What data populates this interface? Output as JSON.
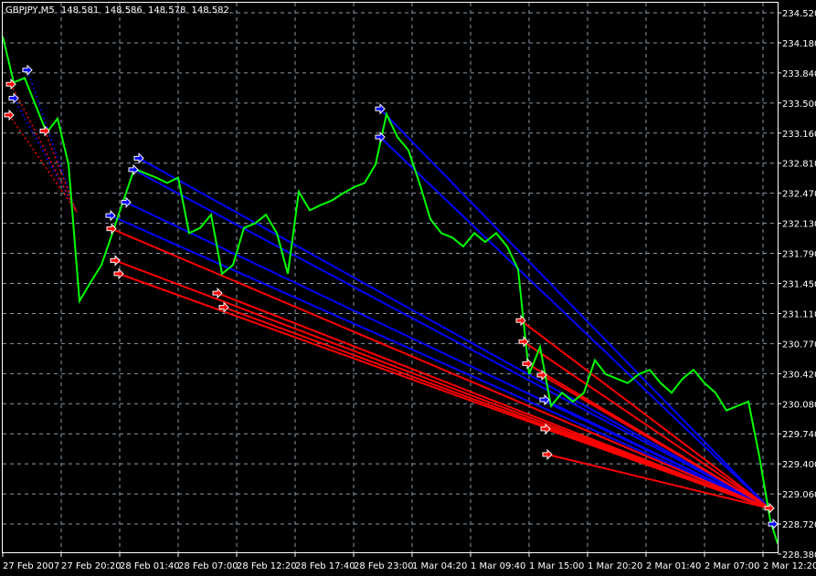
{
  "header": {
    "symbol": "GBPJPY,M5",
    "open": "148.581",
    "high": "148.586",
    "low": "148.578",
    "close": "148.582"
  },
  "colors": {
    "background": "#000000",
    "grid": "#8a9aa8",
    "price": "#00ff00",
    "buy": "#0000ff",
    "sell": "#ff0000",
    "axis": "#ffffff"
  },
  "chart_data": {
    "type": "line",
    "title": "",
    "xlabel": "",
    "ylabel": "",
    "grid": true,
    "ylim": [
      228.38,
      234.52
    ],
    "yticks": [
      "234.520",
      "234.180",
      "233.840",
      "233.500",
      "233.160",
      "232.810",
      "232.470",
      "232.130",
      "231.790",
      "231.450",
      "231.110",
      "230.770",
      "230.420",
      "230.080",
      "229.740",
      "229.400",
      "229.060",
      "228.720",
      "228.380"
    ],
    "xticks": [
      "27 Feb 2007",
      "27 Feb 20:20",
      "28 Feb 01:40",
      "28 Feb 07:00",
      "28 Feb 12:20",
      "28 Feb 17:40",
      "28 Feb 23:00",
      "1 Mar 04:20",
      "1 Mar 09:40",
      "1 Mar 15:00",
      "1 Mar 20:20",
      "2 Mar 01:40",
      "2 Mar 07:00",
      "2 Mar 12:20"
    ],
    "xrange": [
      "2007-02-27 14:50",
      "2007-03-02 13:45"
    ],
    "series": [
      {
        "start": "2007-02-27 15:00",
        "interval_minutes": 60,
        "values": [
          234.25,
          233.73,
          233.78,
          233.47,
          233.16,
          233.32,
          232.8,
          231.25,
          231.46,
          231.66,
          232.02,
          232.39,
          232.75,
          232.7,
          232.65,
          232.59,
          232.65,
          232.02,
          232.08,
          232.23,
          231.56,
          231.66,
          232.08,
          232.13,
          232.23,
          232.02,
          231.56,
          232.49,
          232.28,
          232.34,
          232.39,
          232.47,
          232.54,
          232.59,
          232.8,
          233.37,
          233.11,
          232.96,
          232.59,
          232.18,
          232.02,
          231.97,
          231.87,
          232.02,
          231.92,
          232.02,
          231.87,
          231.61,
          230.42,
          230.73,
          230.06,
          230.21,
          230.11,
          230.21,
          230.58,
          230.42,
          230.37,
          230.32,
          230.42,
          230.47,
          230.32,
          230.21,
          230.37,
          230.47,
          230.32,
          230.21,
          230.01,
          230.06,
          230.11,
          229.49,
          228.76,
          228.5
        ]
      }
    ],
    "trades": [
      {
        "side": "buy",
        "open_time": "2007-03-01 01:25",
        "open_price": 233.43,
        "close_time": "2007-03-02 12:55",
        "close_price": 228.9,
        "style": "solid"
      },
      {
        "side": "buy",
        "open_time": "2007-03-01 01:25",
        "open_price": 233.11,
        "close_time": "2007-03-02 12:55",
        "close_price": 228.9,
        "style": "solid"
      },
      {
        "side": "buy",
        "open_time": "2007-02-28 03:25",
        "open_price": 232.87,
        "close_time": "2007-03-02 12:55",
        "close_price": 228.9,
        "style": "solid"
      },
      {
        "side": "buy",
        "open_time": "2007-02-28 02:55",
        "open_price": 232.74,
        "close_time": "2007-03-02 12:55",
        "close_price": 228.9,
        "style": "solid"
      },
      {
        "side": "buy",
        "open_time": "2007-02-28 02:15",
        "open_price": 232.37,
        "close_time": "2007-03-02 12:55",
        "close_price": 228.9,
        "style": "solid"
      },
      {
        "side": "buy",
        "open_time": "2007-02-28 00:50",
        "open_price": 232.22,
        "close_time": "2007-03-02 12:55",
        "close_price": 228.9,
        "style": "solid"
      },
      {
        "side": "buy",
        "open_time": "2007-03-01 16:25",
        "open_price": 230.13,
        "close_time": "2007-03-02 12:55",
        "close_price": 228.9,
        "style": "solid"
      },
      {
        "side": "sell",
        "open_time": "2007-02-28 00:55",
        "open_price": 232.07,
        "close_time": "2007-03-02 12:55",
        "close_price": 228.9,
        "style": "solid"
      },
      {
        "side": "sell",
        "open_time": "2007-02-28 01:15",
        "open_price": 231.71,
        "close_time": "2007-03-02 12:55",
        "close_price": 228.9,
        "style": "solid"
      },
      {
        "side": "sell",
        "open_time": "2007-02-28 01:35",
        "open_price": 231.56,
        "close_time": "2007-03-02 12:55",
        "close_price": 228.9,
        "style": "solid"
      },
      {
        "side": "sell",
        "open_time": "2007-02-28 10:35",
        "open_price": 231.34,
        "close_time": "2007-03-02 12:55",
        "close_price": 228.9,
        "style": "solid"
      },
      {
        "side": "sell",
        "open_time": "2007-02-28 11:10",
        "open_price": 231.18,
        "close_time": "2007-03-02 12:55",
        "close_price": 228.9,
        "style": "solid"
      },
      {
        "side": "sell",
        "open_time": "2007-03-01 14:15",
        "open_price": 231.03,
        "close_time": "2007-03-02 12:55",
        "close_price": 228.9,
        "style": "solid"
      },
      {
        "side": "sell",
        "open_time": "2007-03-01 14:30",
        "open_price": 230.79,
        "close_time": "2007-03-02 12:55",
        "close_price": 228.9,
        "style": "solid"
      },
      {
        "side": "sell",
        "open_time": "2007-03-01 14:50",
        "open_price": 230.54,
        "close_time": "2007-03-02 12:55",
        "close_price": 228.9,
        "style": "solid"
      },
      {
        "side": "sell",
        "open_time": "2007-03-01 16:10",
        "open_price": 230.41,
        "close_time": "2007-03-02 12:55",
        "close_price": 228.9,
        "style": "solid"
      },
      {
        "side": "sell",
        "open_time": "2007-03-01 16:30",
        "open_price": 229.8,
        "close_time": "2007-03-02 12:55",
        "close_price": 228.9,
        "style": "solid"
      },
      {
        "side": "sell",
        "open_time": "2007-03-01 16:40",
        "open_price": 229.51,
        "close_time": "2007-03-02 12:55",
        "close_price": 228.9,
        "style": "solid"
      },
      {
        "side": "buy",
        "open_time": "2007-02-27 17:15",
        "open_price": 233.87,
        "close_time": "2007-02-27 21:35",
        "close_price": 232.3,
        "style": "dotted"
      },
      {
        "side": "buy",
        "open_time": "2007-02-27 16:00",
        "open_price": 233.55,
        "close_time": "2007-02-27 21:35",
        "close_price": 232.3,
        "style": "dotted"
      },
      {
        "side": "sell",
        "open_time": "2007-02-27 15:45",
        "open_price": 233.71,
        "close_time": "2007-02-27 21:45",
        "close_price": 232.26,
        "style": "dotted"
      },
      {
        "side": "sell",
        "open_time": "2007-02-27 15:35",
        "open_price": 233.36,
        "close_time": "2007-02-27 21:45",
        "close_price": 232.26,
        "style": "dotted"
      },
      {
        "side": "sell",
        "open_time": "2007-02-27 18:50",
        "open_price": 233.18,
        "close_time": "2007-02-27 21:45",
        "close_price": 232.26,
        "style": "dotted"
      }
    ]
  }
}
